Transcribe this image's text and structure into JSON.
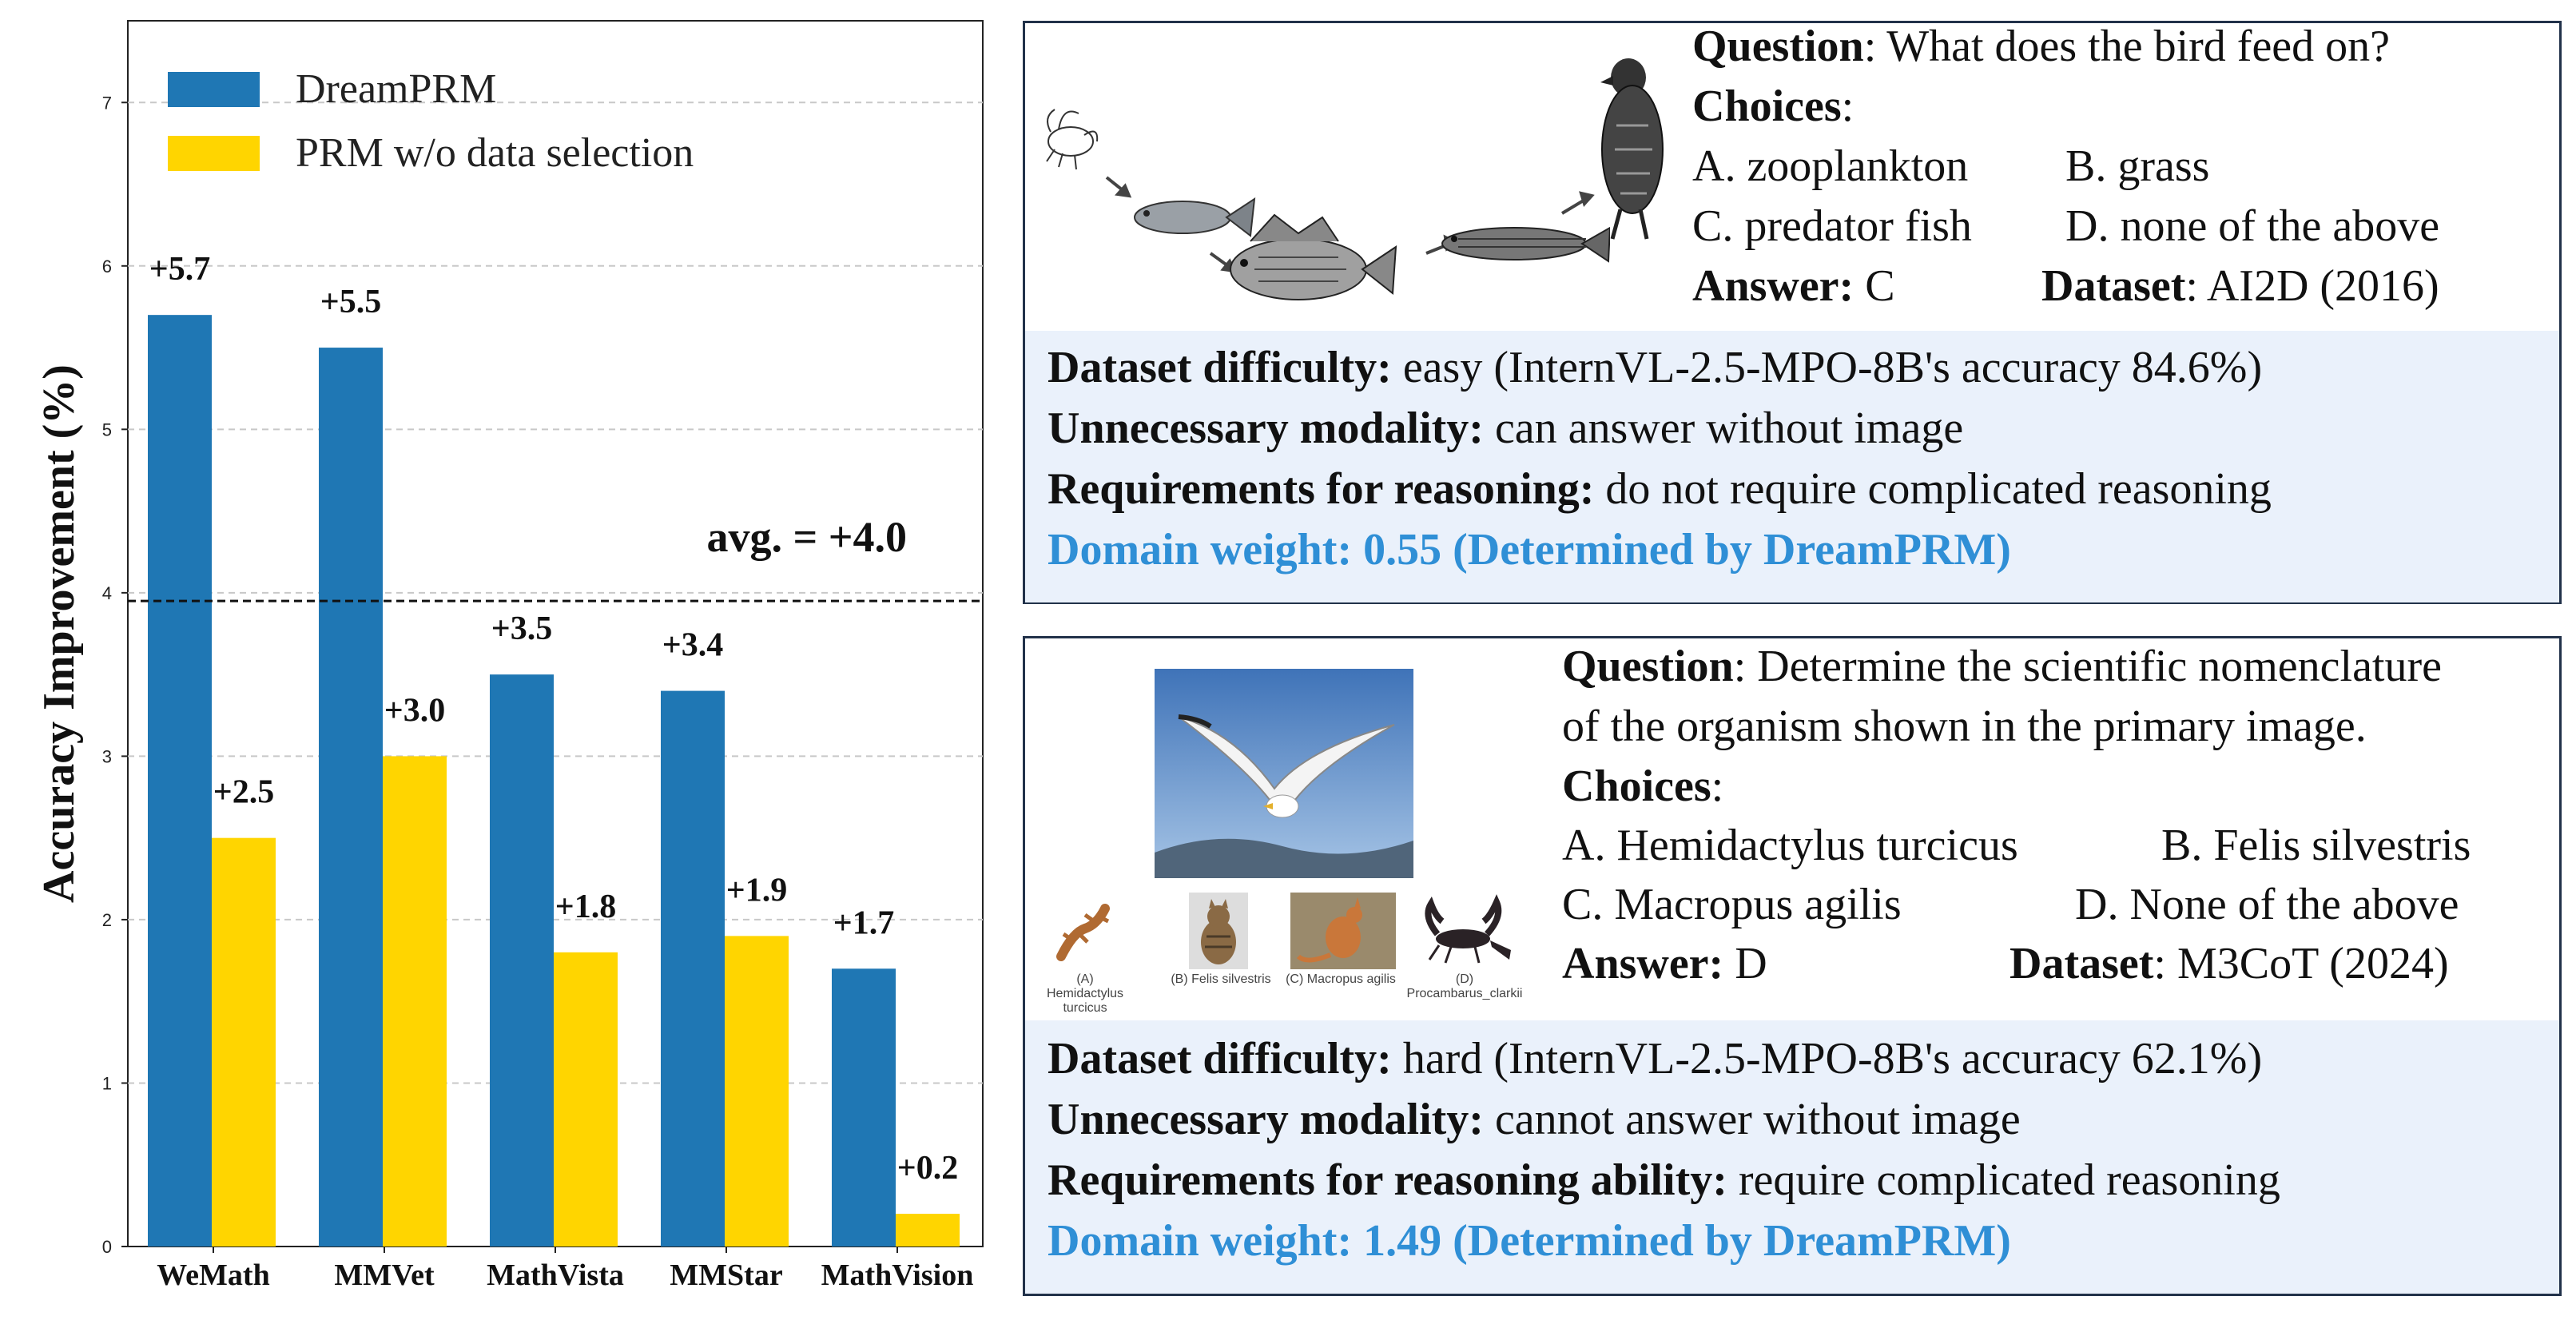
{
  "chart_data": {
    "type": "bar",
    "categories": [
      "WeMath",
      "MMVet",
      "MathVista",
      "MMStar",
      "MathVision"
    ],
    "series": [
      {
        "name": "DreamPRM",
        "values": [
          5.7,
          5.5,
          3.5,
          3.4,
          1.7
        ],
        "labels": [
          "+5.7",
          "+5.5",
          "+3.5",
          "+3.4",
          "+1.7"
        ]
      },
      {
        "name": "PRM w/o data selection",
        "values": [
          2.5,
          3.0,
          1.8,
          1.9,
          0.2
        ],
        "labels": [
          "+2.5",
          "+3.0",
          "+1.8",
          "+1.9",
          "+0.2"
        ]
      }
    ],
    "colors": [
      "#1f77b4",
      "#ffd500"
    ],
    "ylabel": "Accuracy Improvement (%)",
    "xlabel": "",
    "ylim": [
      0,
      7.5
    ],
    "yticks": [
      0,
      1,
      2,
      3,
      4,
      5,
      6,
      7
    ],
    "grid": "horizontal-dashed",
    "legend_position": "top-left",
    "average_line": {
      "value": 3.95,
      "label": "avg. = +4.0"
    }
  },
  "card1": {
    "question_label": "Question",
    "question_text": ": What does the bird feed on?",
    "choices_label": "Choices",
    "choice_a": "A. zooplankton",
    "choice_b": "B. grass",
    "choice_c": "C. predator fish",
    "choice_d": "D. none of the above",
    "answer_label": "Answer:",
    "answer_value": " C",
    "dataset_label": "Dataset",
    "dataset_value": ":  AI2D (2016)",
    "difficulty_label": "Dataset difficulty:",
    "difficulty_value": " easy (InternVL-2.5-MPO-8B's accuracy 84.6%)",
    "modality_label": "Unnecessary modality:",
    "modality_value": " can answer without image",
    "reasoning_label": "Requirements for reasoning:",
    "reasoning_value": " do not require complicated reasoning",
    "weight_label": "Domain weight",
    "weight_value": ": 0.55  (Determined by DreamPRM)"
  },
  "card2": {
    "question_label": "Question",
    "question_text_1": ": Determine the scientific nomenclature",
    "question_text_2": "of the organism shown in the primary image.",
    "choices_label": "Choices",
    "choice_a": "A. Hemidactylus turcicus",
    "choice_b": "B. Felis silvestris",
    "choice_c": "C. Macropus agilis",
    "choice_d": "D. None of the above",
    "answer_label": "Answer:",
    "answer_value": " D",
    "dataset_label": "Dataset",
    "dataset_value": ":  M3CoT (2024)",
    "thumb_caption_a": "(A) Hemidactylus turcicus",
    "thumb_caption_b": "(B) Felis silvestris",
    "thumb_caption_c": "(C) Macropus agilis",
    "thumb_caption_d": "(D) Procambarus_clarkii",
    "difficulty_label": "Dataset difficulty:",
    "difficulty_value": " hard (InternVL-2.5-MPO-8B's accuracy 62.1%)",
    "modality_label": "Unnecessary modality:",
    "modality_value": " cannot answer without image",
    "reasoning_label": "Requirements for reasoning ability:",
    "reasoning_value": " require complicated reasoning",
    "weight_label": "Domain weight",
    "weight_value": ": 1.49  (Determined by DreamPRM)"
  }
}
